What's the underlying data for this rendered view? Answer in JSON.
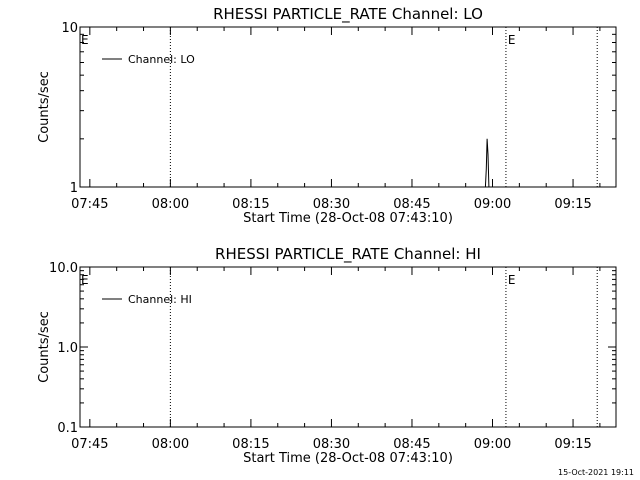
{
  "timestamp": "15-Oct-2021 19:11",
  "chart_data": [
    {
      "type": "line",
      "title": "RHESSI PARTICLE_RATE Channel: LO",
      "xlabel": "Start Time (28-Oct-08 07:43:10)",
      "ylabel": "Counts/sec",
      "x_tick_labels": [
        "07:45",
        "08:00",
        "08:15",
        "08:30",
        "08:45",
        "09:00",
        "09:15"
      ],
      "y_tick_labels": [
        "1",
        "10"
      ],
      "ylim": [
        1,
        10
      ],
      "yscale": "log",
      "xlim": [
        "07:43:10",
        "09:23:00"
      ],
      "legend": {
        "label": "Channel: LO",
        "position": "top-left"
      },
      "markers": [
        {
          "time": "08:00:00",
          "label": ""
        },
        {
          "time": "09:02:30",
          "label": "E"
        },
        {
          "time": "09:19:30",
          "label": ""
        }
      ],
      "edge_labels": [
        {
          "time": "07:43:10",
          "label": "E"
        }
      ],
      "series": [
        {
          "name": "Channel: LO",
          "points": [
            [
              "08:58:40",
              1
            ],
            [
              "08:58:50",
              1.3
            ],
            [
              "08:59:00",
              2.0
            ],
            [
              "08:59:10",
              1.6
            ],
            [
              "08:59:20",
              1
            ]
          ]
        }
      ]
    },
    {
      "type": "line",
      "title": "RHESSI PARTICLE_RATE Channel: HI",
      "xlabel": "Start Time (28-Oct-08 07:43:10)",
      "ylabel": "Counts/sec",
      "x_tick_labels": [
        "07:45",
        "08:00",
        "08:15",
        "08:30",
        "08:45",
        "09:00",
        "09:15"
      ],
      "y_tick_labels": [
        "0.1",
        "1.0",
        "10.0"
      ],
      "ylim": [
        0.1,
        10
      ],
      "yscale": "log",
      "xlim": [
        "07:43:10",
        "09:23:00"
      ],
      "legend": {
        "label": "Channel: HI",
        "position": "top-left"
      },
      "markers": [
        {
          "time": "08:00:00",
          "label": ""
        },
        {
          "time": "09:02:30",
          "label": "E"
        },
        {
          "time": "09:19:30",
          "label": ""
        }
      ],
      "edge_labels": [
        {
          "time": "07:43:10",
          "label": "E"
        }
      ],
      "series": [
        {
          "name": "Channel: HI",
          "points": []
        }
      ]
    }
  ]
}
